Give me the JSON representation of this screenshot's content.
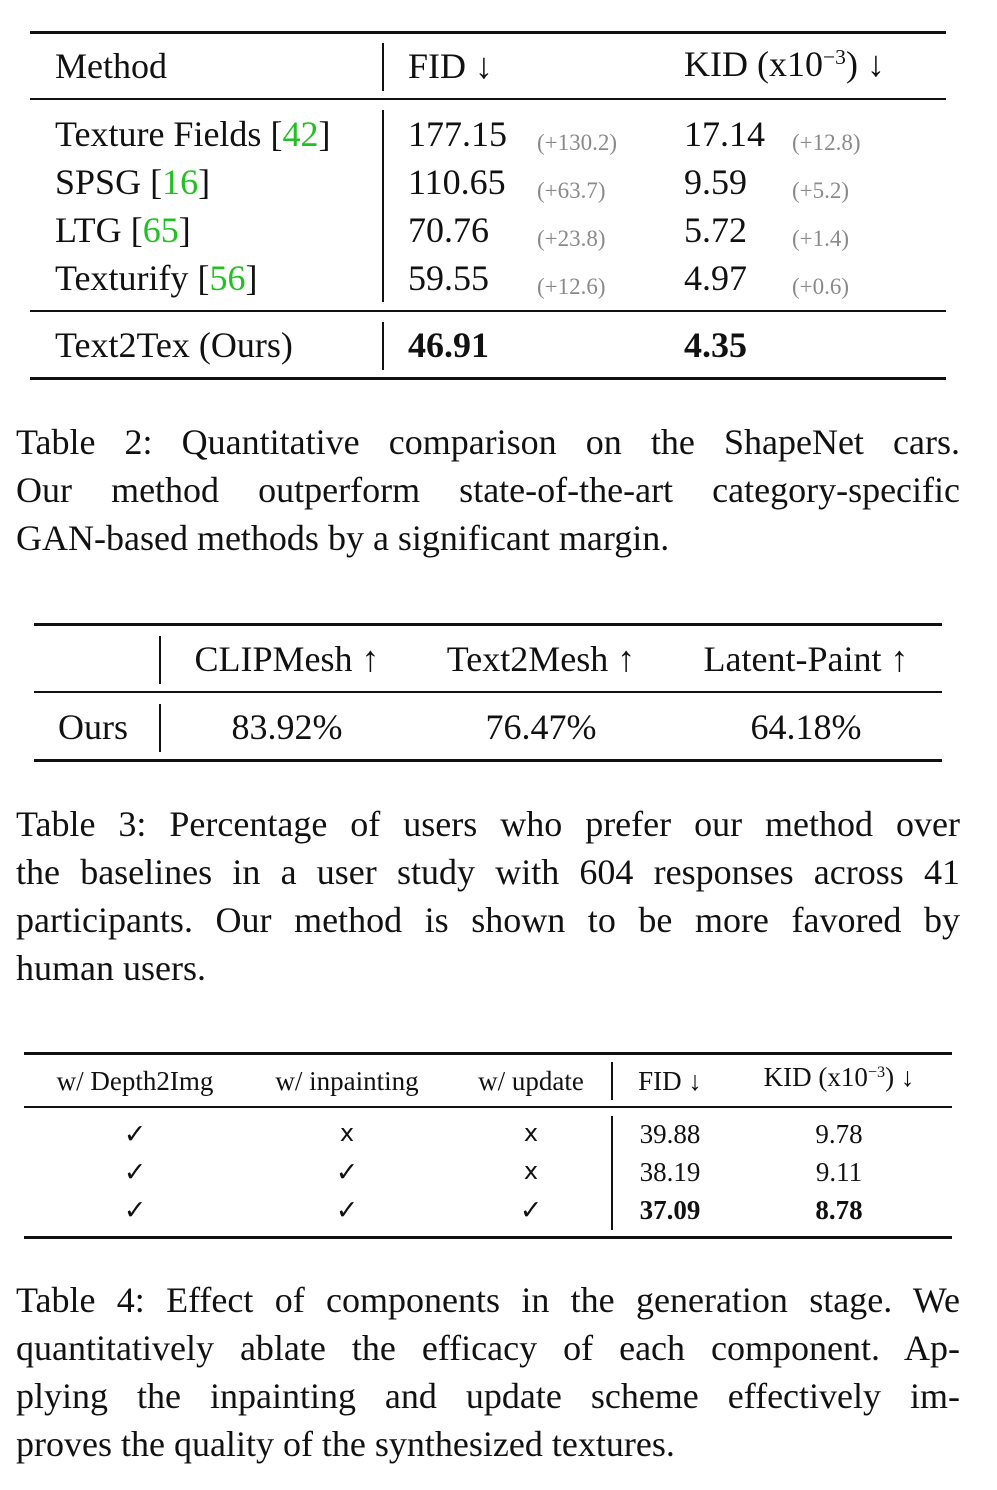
{
  "table2": {
    "headers": {
      "method": "Method",
      "fid": "FID ↓",
      "kid_prefix": "KID (x10",
      "kid_exp": "−3",
      "kid_suffix": ") ↓"
    },
    "rows": [
      {
        "method": "Texture Fields",
        "cite": "42",
        "fid": "177.15",
        "fid_delta": "(+130.2)",
        "kid": "17.14",
        "kid_delta": "(+12.8)"
      },
      {
        "method": "SPSG",
        "cite": "16",
        "fid": "110.65",
        "fid_delta": "(+63.7)",
        "kid": "9.59",
        "kid_delta": "(+5.2)"
      },
      {
        "method": "LTG",
        "cite": "65",
        "fid": "70.76",
        "fid_delta": "(+23.8)",
        "kid": "5.72",
        "kid_delta": "(+1.4)"
      },
      {
        "method": "Texturify",
        "cite": "56",
        "fid": "59.55",
        "fid_delta": "(+12.6)",
        "kid": "4.97",
        "kid_delta": "(+0.6)"
      }
    ],
    "ours": {
      "method": "Text2Tex (Ours)",
      "fid": "46.91",
      "kid": "4.35"
    },
    "caption_lines": [
      "Table 2:  Quantitative comparison on the ShapeNet cars.",
      "Our method outperform state-of-the-art category-specific",
      "GAN-based methods by a significant margin."
    ]
  },
  "table3": {
    "headers": [
      "CLIPMesh ↑",
      "Text2Mesh ↑",
      "Latent-Paint ↑"
    ],
    "row_label": "Ours",
    "values": [
      "83.92%",
      "76.47%",
      "64.18%"
    ],
    "caption_lines": [
      "Table 3:  Percentage of users who prefer our method over",
      "the baselines in a user study with 604 responses across 41",
      "participants.  Our method is shown to be more favored by",
      "human users."
    ]
  },
  "table4": {
    "headers": {
      "depth2img": "w/ Depth2Img",
      "inpainting": "w/ inpainting",
      "update": "w/ update",
      "fid": "FID ↓",
      "kid_prefix": "KID (x10",
      "kid_exp": "−3",
      "kid_suffix": ") ↓"
    },
    "check_glyph": "✓",
    "cross_glyph": "x",
    "rows": [
      {
        "depth2img": "✓",
        "inpainting": "x",
        "update": "x",
        "fid": "39.88",
        "kid": "9.78"
      },
      {
        "depth2img": "✓",
        "inpainting": "✓",
        "update": "x",
        "fid": "38.19",
        "kid": "9.11"
      },
      {
        "depth2img": "✓",
        "inpainting": "✓",
        "update": "✓",
        "fid": "37.09",
        "kid": "8.78"
      }
    ],
    "caption_lines": [
      "Table 4: Effect of components in the generation stage. We",
      "quantitatively ablate the efficacy of each component.  Ap-",
      "plying the inpainting and update scheme effectively im-",
      "proves the quality of the synthesized textures."
    ]
  },
  "colors": {
    "citation": "#22c022",
    "delta": "#8a8a8a",
    "text": "#111111"
  }
}
